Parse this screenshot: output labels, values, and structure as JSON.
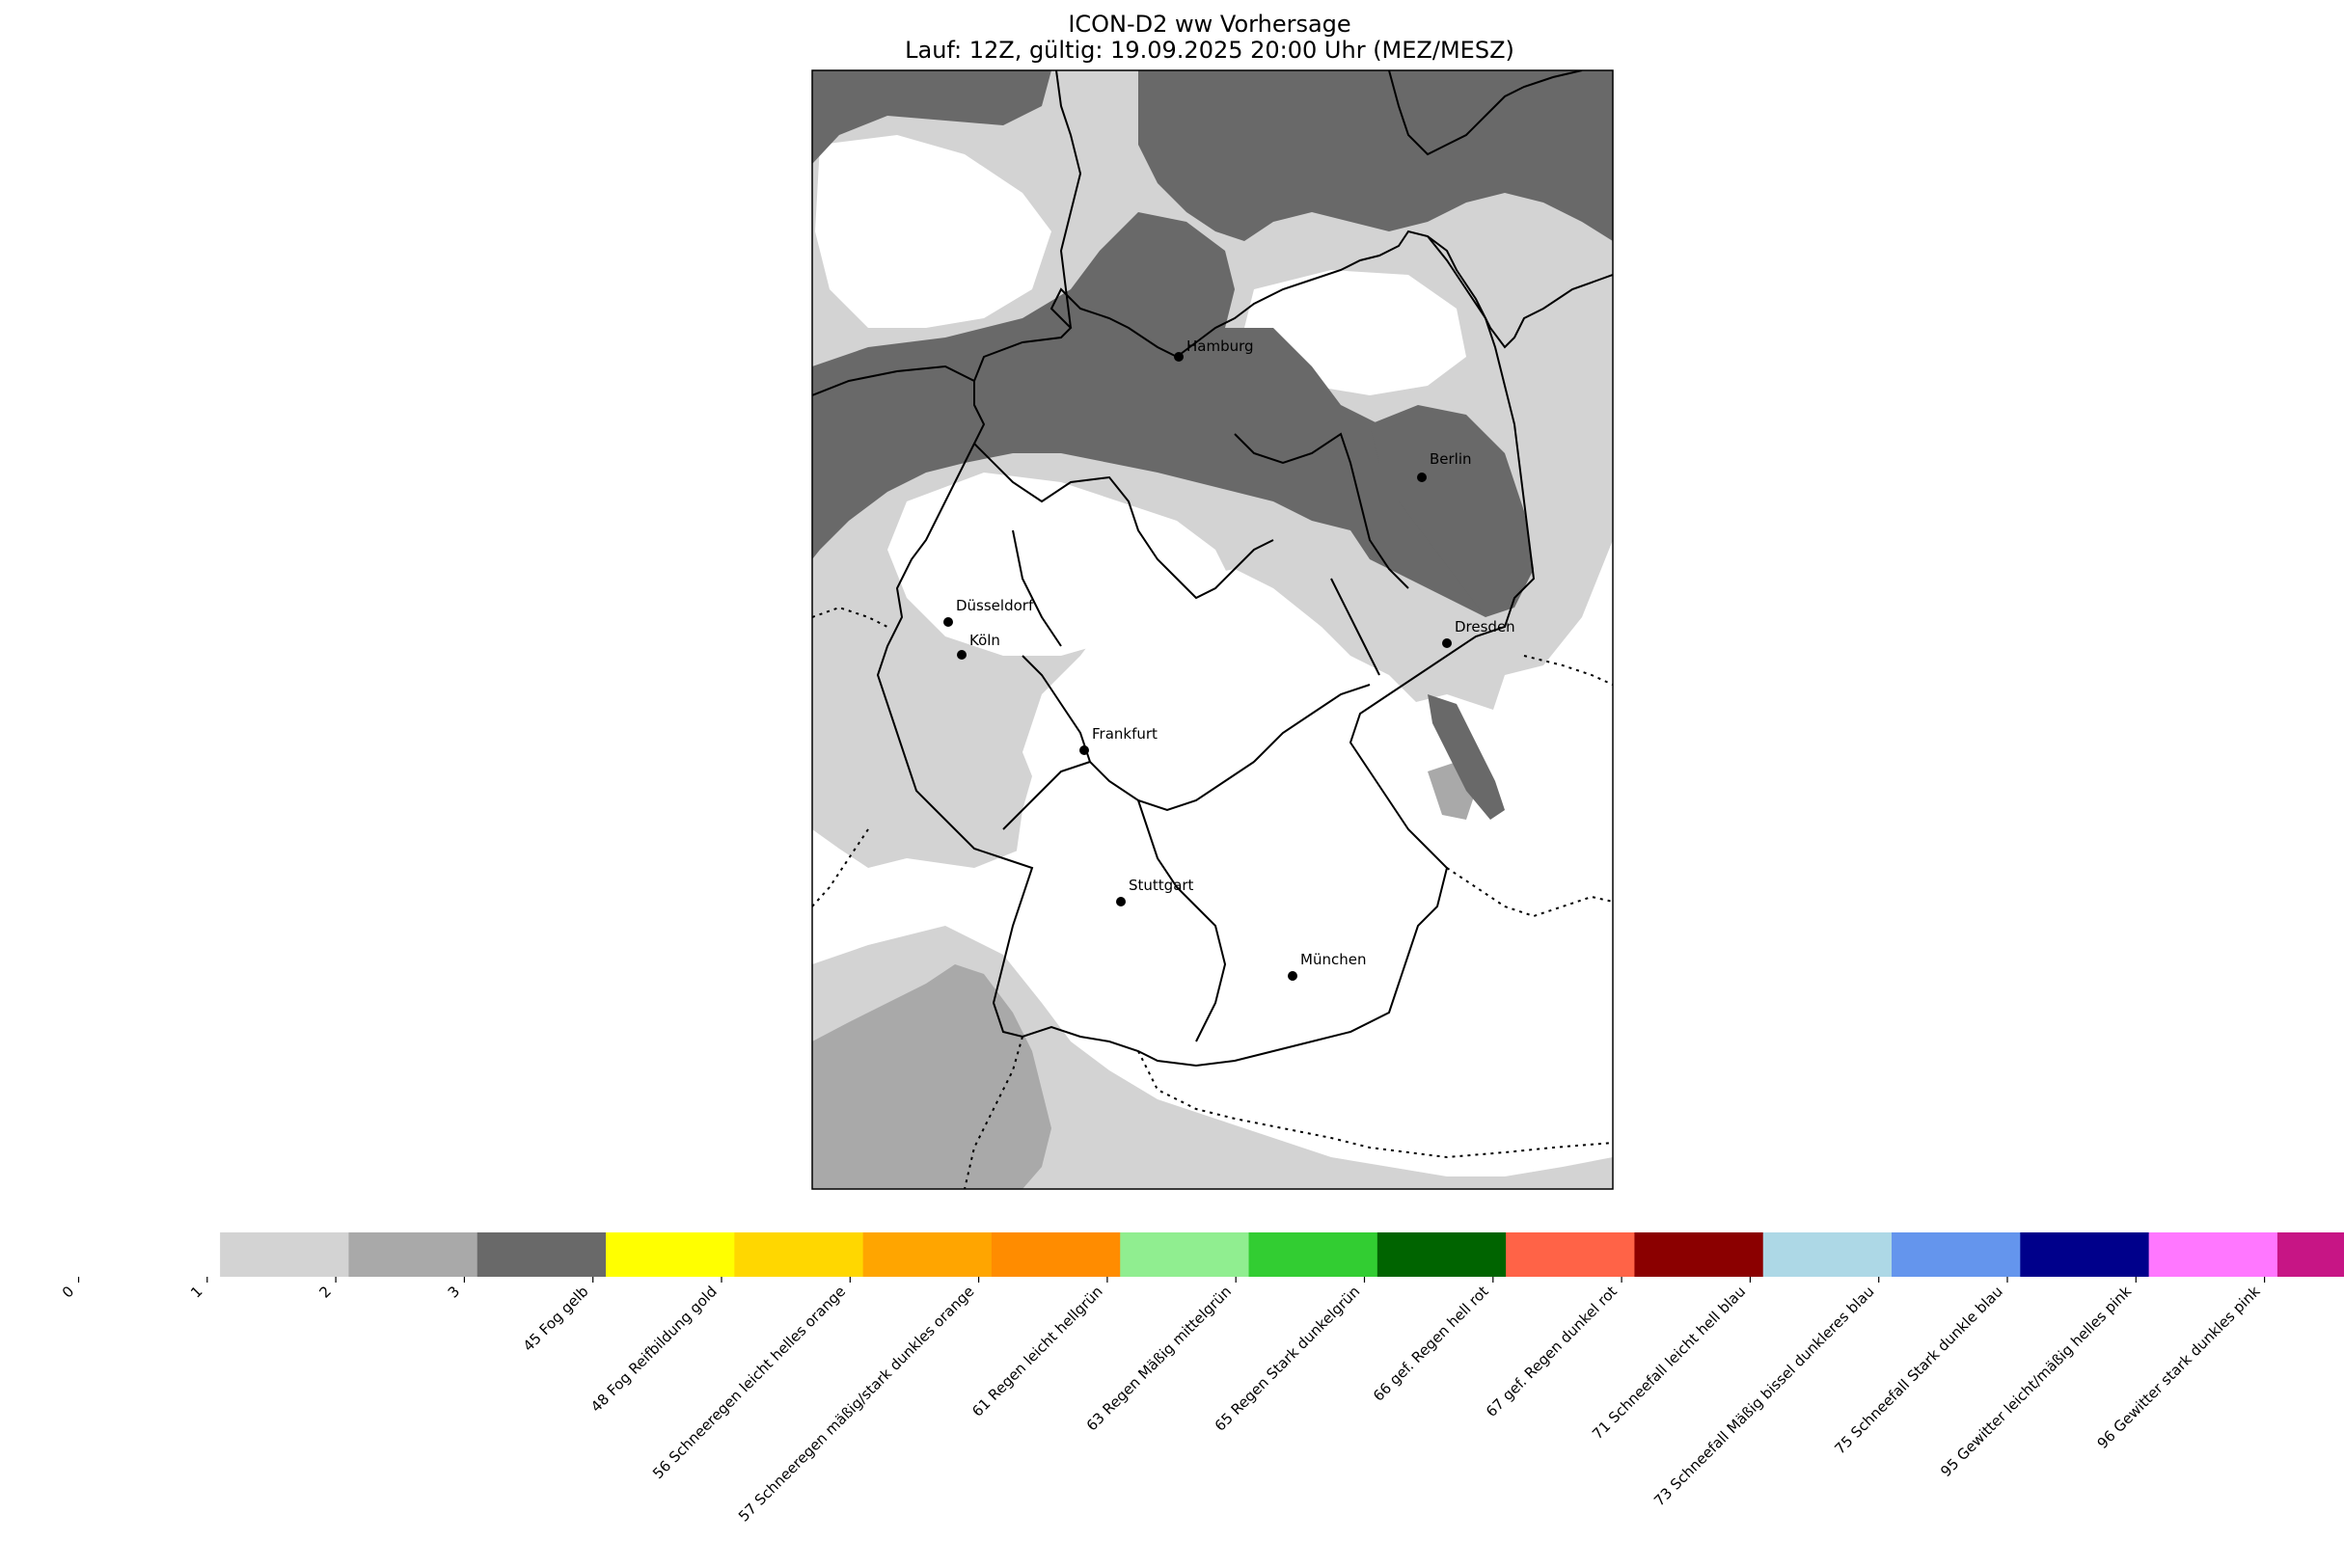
{
  "title": {
    "line1": "ICON-D2 ww Vorhersage",
    "line2": "Lauf: 12Z, gültig: 19.09.2025 20:00 Uhr (MEZ/MESZ)"
  },
  "map": {
    "background": "#ffffff",
    "cloud_colors": {
      "1": "#d3d3d3",
      "2": "#a9a9a9",
      "3": "#696969"
    },
    "cities": [
      {
        "name": "Hamburg"
      },
      {
        "name": "Berlin"
      },
      {
        "name": "Düsseldorf"
      },
      {
        "name": "Köln"
      },
      {
        "name": "Dresden"
      },
      {
        "name": "Frankfurt"
      },
      {
        "name": "Stuttgart"
      },
      {
        "name": "München"
      }
    ]
  },
  "colorbar": {
    "entries": [
      {
        "label": "0",
        "color": "#ffffff"
      },
      {
        "label": "1",
        "color": "#d3d3d3"
      },
      {
        "label": "2",
        "color": "#a9a9a9"
      },
      {
        "label": "3",
        "color": "#696969"
      },
      {
        "label": "45 Fog gelb",
        "color": "#ffff00"
      },
      {
        "label": "48 Fog Reifbildung gold",
        "color": "#ffd700"
      },
      {
        "label": "56 Schneeregen leicht helles orange",
        "color": "#ffa500"
      },
      {
        "label": "57 Schneeregen mäßig/stark dunkles orange",
        "color": "#ff8c00"
      },
      {
        "label": "61 Regen leicht hellgrün",
        "color": "#90ee90"
      },
      {
        "label": "63 Regen Mäßig mittelgrün",
        "color": "#32cd32"
      },
      {
        "label": "65 Regen Stark dunkelgrün",
        "color": "#006400"
      },
      {
        "label": "66 gef. Regen hell rot",
        "color": "#ff6347"
      },
      {
        "label": "67 gef. Regen dunkel rot",
        "color": "#8b0000"
      },
      {
        "label": "71 Schneefall leicht hell blau",
        "color": "#add8e6"
      },
      {
        "label": "73 Schneefall Mäßig bissel dunkleres blau",
        "color": "#6495ed"
      },
      {
        "label": "75 Schneefall Stark dunkle blau",
        "color": "#00008b"
      },
      {
        "label": "95 Gewitter leicht/mäßig helles pink",
        "color": "#ff77ff"
      },
      {
        "label": "96 Gewitter stark dunkles pink",
        "color": "#c71585"
      }
    ]
  }
}
